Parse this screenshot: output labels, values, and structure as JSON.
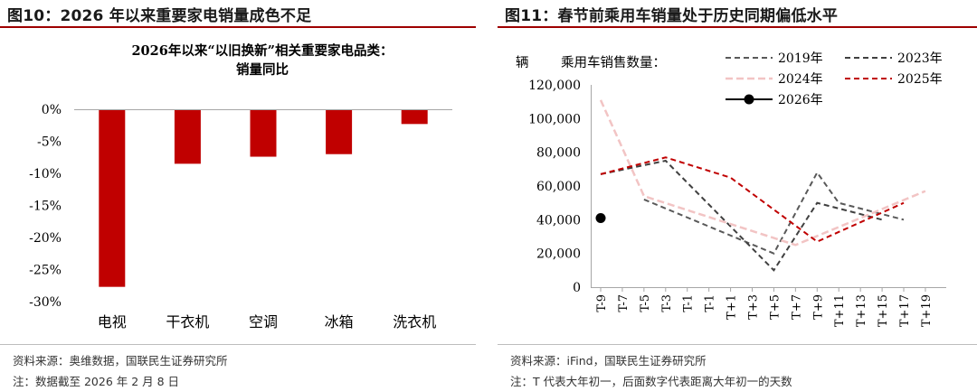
{
  "left": {
    "title": "图10：2026 年以来重要家电销量成色不足",
    "source": "资料来源：奥维数据，国联民生证券研究所",
    "note": "注：数据截至 2026 年 2 月 8 日",
    "colors": {
      "bar": "#c00000",
      "rule": "#9e0000",
      "axis": "#a6a6a6"
    }
  },
  "right": {
    "title": "图11：春节前乘用车销量处于历史同期偏低水平",
    "source": "资料来源：iFind，国联民生证券研究所",
    "note": "注：T 代表大年初一，后面数字代表距离大年初一的天数",
    "unit_label": "辆",
    "series_label": "乘用车销售数量：",
    "colors": {
      "s2019": "#595959",
      "s2023": "#404040",
      "s2024": "#f2c4c4",
      "s2025": "#c00000",
      "s2026": "#000000",
      "rule": "#9e0000"
    }
  },
  "chart_data": [
    {
      "type": "bar",
      "title": "2026年以来“以旧换新”相关重要家电品类：",
      "subtitle": "销量同比",
      "categories": [
        "电视",
        "干衣机",
        "空调",
        "冰箱",
        "洗衣机"
      ],
      "values": [
        -27.7,
        -8.5,
        -7.4,
        -7.0,
        -2.3
      ],
      "ylim": [
        -30,
        0
      ],
      "yticks": [
        "0%",
        "-5%",
        "-10%",
        "-15%",
        "-20%",
        "-25%",
        "-30%"
      ],
      "ytick_values": [
        0,
        -5,
        -10,
        -15,
        -20,
        -25,
        -30
      ]
    },
    {
      "type": "line",
      "x": [
        "T-9",
        "T-7",
        "T-5",
        "T-3",
        "T-1",
        "T-1",
        "T+1",
        "T+3",
        "T+5",
        "T+7",
        "T+9",
        "T+11",
        "T+13",
        "T+15",
        "T+17",
        "T+19"
      ],
      "ylim": [
        0,
        120000
      ],
      "yticks": [
        "0",
        "20,000",
        "40,000",
        "60,000",
        "80,000",
        "100,000",
        "120,000"
      ],
      "ytick_values": [
        0,
        20000,
        40000,
        60000,
        80000,
        100000,
        120000
      ],
      "grid": false,
      "series": [
        {
          "name": "2019年",
          "style": "dashed",
          "points": [
            [
              2,
              52000
            ],
            [
              8,
              20000
            ],
            [
              10,
              68000
            ],
            [
              11,
              50000
            ],
            [
              14,
              40000
            ]
          ]
        },
        {
          "name": "2023年",
          "style": "dashed",
          "points": [
            [
              0,
              67000
            ],
            [
              3,
              75000
            ],
            [
              8,
              10000
            ],
            [
              10,
              50000
            ],
            [
              13,
              40000
            ]
          ]
        },
        {
          "name": "2024年",
          "style": "dashed",
          "points": [
            [
              0,
              111000
            ],
            [
              2,
              54000
            ],
            [
              9,
              25000
            ],
            [
              15,
              57000
            ]
          ]
        },
        {
          "name": "2025年",
          "style": "dashed",
          "points": [
            [
              0,
              67000
            ],
            [
              3,
              77000
            ],
            [
              6,
              65000
            ],
            [
              10,
              27000
            ],
            [
              14,
              50000
            ]
          ]
        },
        {
          "name": "2026年",
          "style": "marker",
          "points": [
            [
              0,
              41000
            ]
          ]
        }
      ]
    }
  ]
}
